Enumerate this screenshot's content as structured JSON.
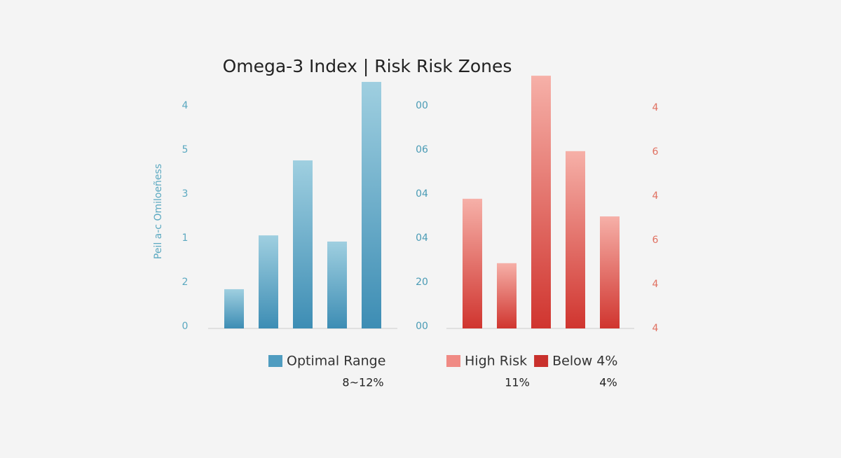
{
  "chart_data": [
    {
      "type": "bar",
      "title": "Omega-3 Index | Risk Risk Zones",
      "y_label": "Peil a-c Omiloeñess",
      "ylim": [
        0,
        5.7
      ],
      "yticks": [
        0,
        {
          "value": 1,
          "label": "2"
        },
        {
          "value": 2,
          "label": "1"
        },
        3,
        {
          "value": 4,
          "label": "5"
        },
        {
          "value": 5,
          "label": "4"
        }
      ],
      "series": [
        {
          "name": "Optimal Range",
          "color": "#4f9cc0",
          "note": "8~12%",
          "values": [
            0.89,
            2.11,
            3.81,
            1.97,
            5.59
          ]
        }
      ]
    },
    {
      "type": "bar",
      "ylim": [
        0,
        5.7
      ],
      "yticks": [
        {
          "value": 0,
          "label": "00"
        },
        {
          "value": 1,
          "label": "20"
        },
        {
          "value": 2,
          "label": "04"
        },
        {
          "value": 3,
          "label": "04"
        },
        {
          "value": 4,
          "label": "06"
        },
        {
          "value": 5,
          "label": "00"
        }
      ],
      "y2lim": [
        0,
        5.7
      ],
      "y2ticks": [
        {
          "value": 0,
          "label": "4"
        },
        {
          "value": 1,
          "label": "4"
        },
        {
          "value": 2,
          "label": "6"
        },
        {
          "value": 3,
          "label": "4"
        },
        {
          "value": 4,
          "label": "6"
        },
        {
          "value": 5,
          "label": "4"
        }
      ],
      "series": [
        {
          "name": "High Risk",
          "color": "#f08a84",
          "note": "11%",
          "values": [
            2.94,
            1.48,
            5.73,
            4.02,
            2.54
          ]
        }
      ],
      "legend": [
        {
          "name": "Below 4%",
          "color": "#c9302c",
          "note": "4%"
        }
      ]
    }
  ]
}
